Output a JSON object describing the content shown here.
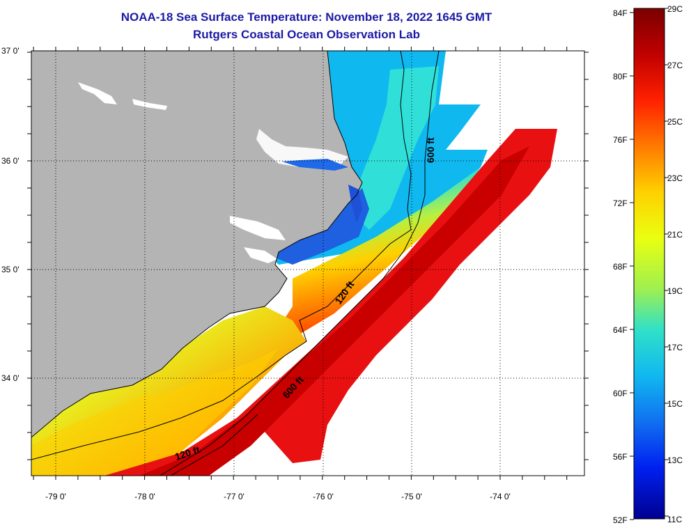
{
  "title": {
    "line1": "NOAA-18 Sea Surface Temperature:  November 18, 2022 1645 GMT",
    "line2": "Rutgers Coastal Ocean Observation Lab"
  },
  "map": {
    "latitude_labels": [
      "37 0'",
      "36 0'",
      "35 0'",
      "34 0'"
    ],
    "longitude_labels": [
      "-79 0'",
      "-78 0'",
      "-77 0'",
      "-76 0'",
      "-75 0'",
      "-74 0'"
    ],
    "land_color": "#b4b4b4",
    "no_data_color": "#ffffff",
    "isobath_labels": {
      "shelf_north_600": "600 ft",
      "shelf_mid_120": "120 ft",
      "shelf_mid_600": "600 ft",
      "shelf_south_120": "120 ft"
    }
  },
  "colorbar": {
    "fahrenheit_labels": [
      "84F",
      "80F",
      "76F",
      "72F",
      "68F",
      "64F",
      "60F",
      "56F",
      "52F"
    ],
    "celsius_labels": [
      "29C",
      "27C",
      "25C",
      "23C",
      "21C",
      "19C",
      "17C",
      "15C",
      "13C",
      "11C"
    ],
    "color_stops": [
      "#7a0000",
      "#c00000",
      "#ff2000",
      "#ff7a00",
      "#ffd000",
      "#eaff10",
      "#9ef050",
      "#30e0c8",
      "#10b8f0",
      "#1070f0",
      "#0020f0",
      "#000090"
    ]
  }
}
